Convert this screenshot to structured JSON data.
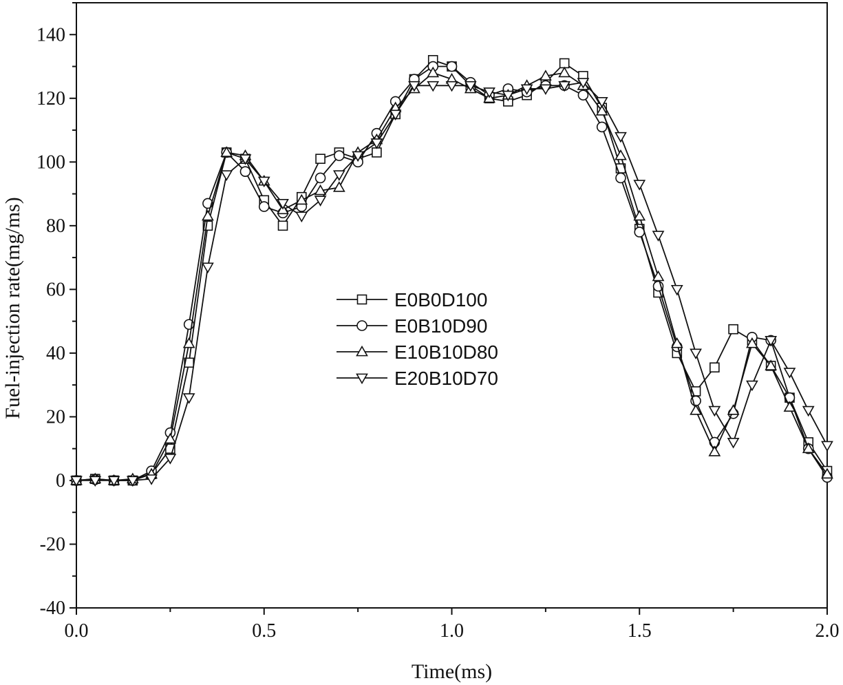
{
  "chart_data": {
    "type": "line",
    "xlabel": "Time(ms)",
    "ylabel": "Fuel-injection rate(mg/ms)",
    "xlim": [
      0,
      2.0
    ],
    "ylim": [
      -40,
      150
    ],
    "xticks": [
      0,
      0.5,
      1.0,
      1.5,
      2.0
    ],
    "xtick_labels": [
      "0.0",
      "0.5",
      "1.0",
      "1.5",
      "2.0"
    ],
    "yticks": [
      -40,
      -20,
      0,
      20,
      40,
      60,
      80,
      100,
      120,
      140
    ],
    "ytick_labels": [
      "-40",
      "-20",
      "0",
      "20",
      "40",
      "60",
      "80",
      "100",
      "120",
      "140"
    ],
    "grid": false,
    "legend_position": "center",
    "x": [
      0,
      0.05,
      0.1,
      0.15,
      0.2,
      0.25,
      0.3,
      0.35,
      0.4,
      0.45,
      0.5,
      0.55,
      0.6,
      0.65,
      0.7,
      0.75,
      0.8,
      0.85,
      0.9,
      0.95,
      1.0,
      1.05,
      1.1,
      1.15,
      1.2,
      1.25,
      1.3,
      1.35,
      1.4,
      1.45,
      1.5,
      1.55,
      1.6,
      1.65,
      1.7,
      1.75,
      1.8,
      1.85,
      1.9,
      1.95,
      2.0
    ],
    "series": [
      {
        "name": "E0B0D100",
        "marker": "square",
        "values": [
          0,
          0.5,
          0,
          0,
          2,
          10,
          37,
          80,
          103,
          101,
          88,
          80,
          89,
          101,
          103,
          101,
          103,
          115,
          126,
          132,
          130,
          124,
          120,
          119,
          121,
          125,
          131,
          127,
          117,
          98,
          79,
          59,
          40,
          28,
          35.5,
          47.5,
          44,
          36,
          26,
          12,
          3
        ]
      },
      {
        "name": "E0B10D90",
        "marker": "circle",
        "values": [
          0,
          0.3,
          0,
          0,
          3,
          15,
          49,
          87,
          103,
          97,
          86,
          84,
          86,
          95,
          102,
          100,
          109,
          119,
          126,
          130,
          130,
          125,
          121,
          123,
          122,
          124,
          124,
          121,
          111,
          95,
          78,
          61,
          42,
          25,
          12,
          21,
          45,
          44,
          26,
          10,
          1
        ]
      },
      {
        "name": "E10B10D80",
        "marker": "triangle-up",
        "values": [
          0,
          0.5,
          0,
          0.5,
          2,
          13,
          43,
          83,
          103,
          102,
          94,
          85,
          88,
          91,
          92,
          103,
          107,
          117,
          123,
          128,
          126,
          123,
          120,
          121,
          124,
          127,
          128,
          124,
          116,
          102,
          83,
          64,
          43,
          22,
          9,
          22,
          43,
          36,
          23,
          10,
          2
        ]
      },
      {
        "name": "E20B10D70",
        "marker": "triangle-down",
        "values": [
          0,
          0,
          0,
          0,
          0.5,
          7,
          26,
          67,
          96,
          101,
          94,
          87,
          83,
          88,
          96,
          102,
          106,
          115,
          124,
          124,
          124,
          124,
          122,
          121,
          123,
          123,
          124,
          125,
          119,
          108,
          93,
          77,
          60,
          40,
          22,
          12,
          30,
          44,
          34,
          22,
          11
        ]
      }
    ]
  }
}
